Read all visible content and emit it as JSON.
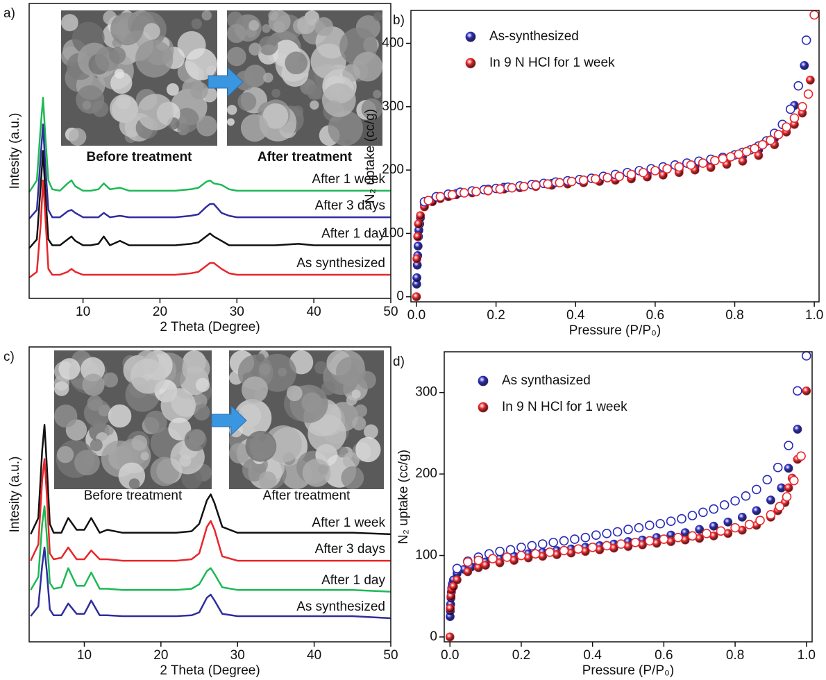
{
  "chart_data": [
    {
      "type": "line",
      "panel_label": "a)",
      "xlabel": "2 Theta (Degree)",
      "ylabel": "Intesity (a.u.)",
      "xlim": [
        3,
        50
      ],
      "xticks": [
        10,
        20,
        30,
        40,
        50
      ],
      "ylim": [
        0,
        100
      ],
      "insets": [
        {
          "caption": "Before treatment"
        },
        {
          "caption": "After treatment"
        }
      ],
      "inset_caption_bold": true,
      "x": [
        3,
        4,
        4.5,
        4.8,
        5.1,
        5.5,
        6,
        7,
        8,
        8.5,
        9,
        10,
        11,
        12,
        12.7,
        13.5,
        14.8,
        16,
        18,
        20,
        22,
        24,
        25,
        26,
        26.5,
        27,
        28,
        29,
        30,
        32,
        35,
        38,
        40,
        45,
        50
      ],
      "series": [
        {
          "name": "After 1 week",
          "color": "#1db954",
          "values": [
            36,
            40,
            58,
            68,
            55,
            40,
            37,
            36.5,
            39,
            40,
            38,
            36.5,
            36.5,
            37,
            39,
            37,
            37.5,
            36.5,
            36.5,
            36.5,
            36.5,
            37,
            37.5,
            39.5,
            40,
            39,
            38.5,
            37,
            36.5,
            36.5,
            36.5,
            36.5,
            36.5,
            36.5,
            36.5
          ]
        },
        {
          "name": "After 3 days",
          "color": "#2e2e9e",
          "values": [
            27,
            30,
            48,
            59,
            45,
            30,
            27.5,
            27.5,
            29.5,
            30,
            29,
            27.5,
            27.5,
            27.5,
            29,
            27.5,
            28,
            27.5,
            27.5,
            27.5,
            27.5,
            28,
            28.5,
            31,
            32,
            32,
            29,
            28,
            27.5,
            27.5,
            27.5,
            27.5,
            27.5,
            27.5,
            27.5
          ]
        },
        {
          "name": "After 1 day",
          "color": "#111111",
          "values": [
            17,
            20,
            38,
            50,
            36,
            20,
            18,
            18,
            20,
            21,
            19.5,
            18,
            18,
            18.5,
            21,
            18,
            19.5,
            18,
            18,
            18,
            18,
            18.5,
            19,
            21,
            22,
            21,
            19.5,
            18,
            18,
            18,
            18,
            18.5,
            18,
            18,
            18
          ]
        },
        {
          "name": "As synthesized",
          "color": "#e8262b",
          "values": [
            7,
            9,
            25,
            40,
            28,
            10,
            8,
            8,
            9,
            10,
            9,
            8,
            8,
            8,
            8,
            8,
            8,
            8,
            8,
            8,
            8,
            8.5,
            9,
            11,
            12,
            12,
            10,
            8.5,
            8,
            8,
            8,
            8,
            8,
            8,
            8
          ]
        }
      ]
    },
    {
      "type": "scatter",
      "panel_label": "b)",
      "xlabel": "Pressure (P/P₀)",
      "ylabel": "N₂ uptake (cc/g)",
      "xlim": [
        -0.014,
        1.012
      ],
      "xticks": [
        {
          "value": 0,
          "label": "0.0"
        },
        0.2,
        0.4,
        0.6,
        0.8,
        {
          "value": 1,
          "label": "1.0"
        }
      ],
      "ylim": [
        -8,
        452
      ],
      "yticks": [
        0,
        100,
        200,
        300,
        400
      ],
      "legend": "upper left",
      "series": [
        {
          "name": "As-synthesized",
          "color": "#2b2bb8",
          "marker": "filled",
          "x": [
            0.0005,
            0.001,
            0.002,
            0.003,
            0.004,
            0.005,
            0.006,
            0.008,
            0.01,
            0.02,
            0.04,
            0.06,
            0.08,
            0.1,
            0.14,
            0.18,
            0.22,
            0.26,
            0.3,
            0.34,
            0.38,
            0.42,
            0.46,
            0.5,
            0.54,
            0.58,
            0.62,
            0.66,
            0.7,
            0.74,
            0.78,
            0.82,
            0.86,
            0.9,
            0.93,
            0.95,
            0.975
          ],
          "values": [
            20,
            30,
            50,
            65,
            80,
            95,
            105,
            115,
            125,
            145,
            152,
            157,
            160,
            163,
            167,
            170,
            173,
            175,
            177,
            179,
            181,
            183,
            185,
            187,
            189,
            192,
            196,
            200,
            205,
            210,
            216,
            222,
            232,
            250,
            268,
            302,
            365
          ]
        },
        {
          "name": "In 9 N HCl for 1 week",
          "color": "#e8262b",
          "marker": "filled",
          "x": [
            0,
            0.001,
            0.003,
            0.005,
            0.01,
            0.02,
            0.04,
            0.06,
            0.08,
            0.1,
            0.14,
            0.18,
            0.22,
            0.26,
            0.3,
            0.34,
            0.38,
            0.42,
            0.46,
            0.5,
            0.54,
            0.58,
            0.62,
            0.66,
            0.7,
            0.74,
            0.78,
            0.82,
            0.86,
            0.9,
            0.93,
            0.95,
            0.97,
            0.99
          ],
          "values": [
            0,
            60,
            95,
            115,
            128,
            142,
            150,
            155,
            158,
            161,
            164,
            167,
            170,
            172,
            174,
            176,
            178,
            180,
            182,
            184,
            186,
            189,
            192,
            196,
            200,
            204,
            209,
            214,
            223,
            240,
            260,
            272,
            290,
            342
          ]
        },
        {
          "color": "#2b2bb8",
          "marker": "open",
          "x": [
            0.98,
            0.96,
            0.94,
            0.92,
            0.9,
            0.88,
            0.86,
            0.84,
            0.82,
            0.8,
            0.77,
            0.74,
            0.71,
            0.68,
            0.65,
            0.62,
            0.59,
            0.56,
            0.53,
            0.5,
            0.47,
            0.44,
            0.41,
            0.38,
            0.35,
            0.32,
            0.29,
            0.26,
            0.23,
            0.2,
            0.17,
            0.14,
            0.11,
            0.08,
            0.05,
            0.02
          ],
          "values": [
            405,
            333,
            296,
            272,
            258,
            246,
            238,
            232,
            228,
            224,
            220,
            217,
            214,
            211,
            208,
            205,
            202,
            199,
            196,
            193,
            190,
            187,
            185,
            183,
            181,
            179,
            177,
            175,
            173,
            171,
            169,
            167,
            165,
            162,
            158,
            150
          ]
        },
        {
          "color": "#e8262b",
          "marker": "open",
          "x": [
            1.0,
            0.985,
            0.97,
            0.95,
            0.93,
            0.91,
            0.89,
            0.87,
            0.85,
            0.83,
            0.81,
            0.79,
            0.77,
            0.75,
            0.72,
            0.69,
            0.66,
            0.63,
            0.6,
            0.57,
            0.54,
            0.51,
            0.48,
            0.45,
            0.42,
            0.39,
            0.36,
            0.33,
            0.3,
            0.27,
            0.24,
            0.21,
            0.18,
            0.15,
            0.12,
            0.09,
            0.06,
            0.03
          ],
          "values": [
            445,
            320,
            300,
            282,
            268,
            256,
            247,
            240,
            234,
            229,
            225,
            221,
            218,
            215,
            211,
            208,
            205,
            202,
            199,
            196,
            193,
            190,
            188,
            186,
            184,
            182,
            180,
            178,
            176,
            174,
            172,
            170,
            168,
            166,
            164,
            161,
            158,
            152
          ]
        }
      ]
    },
    {
      "type": "line",
      "panel_label": "c)",
      "xlabel": "2 Theta (Degree)",
      "ylabel": "Intesity (a.u.)",
      "xlim": [
        2.8,
        50
      ],
      "xticks": [
        10,
        20,
        30,
        40,
        50
      ],
      "ylim": [
        0,
        100
      ],
      "insets": [
        {
          "caption": "Before treatment"
        },
        {
          "caption": "After treatment"
        }
      ],
      "inset_caption_bold": false,
      "x": [
        3,
        4,
        4.5,
        4.8,
        5.1,
        5.5,
        6,
        7,
        7.9,
        9,
        10,
        10.9,
        12,
        13,
        15,
        18,
        20,
        22,
        24,
        25,
        26,
        26.5,
        27,
        28,
        30,
        35,
        40,
        45,
        50
      ],
      "series": [
        {
          "name": "After 1 week",
          "color": "#111111",
          "values": [
            36.5,
            42,
            65,
            73.6,
            60,
            40,
            37,
            37,
            42,
            38,
            38,
            42,
            37,
            38,
            37,
            37,
            37,
            37,
            37.5,
            40,
            48,
            50,
            47,
            39,
            37,
            37,
            37,
            37,
            36.5
          ]
        },
        {
          "name": "After 3 days",
          "color": "#e8262b",
          "values": [
            27.5,
            33,
            55,
            62,
            50,
            30,
            28,
            28.5,
            32,
            28,
            28,
            31,
            28,
            28,
            27.5,
            27.5,
            27.5,
            27.5,
            28,
            30,
            39,
            41,
            38,
            29,
            27.5,
            27.5,
            27.5,
            27.5,
            27.5
          ]
        },
        {
          "name": "After 1 day",
          "color": "#1db954",
          "values": [
            17.6,
            22,
            40,
            46,
            36,
            20,
            18,
            18.5,
            25,
            19,
            19,
            23.5,
            18,
            18,
            17.6,
            17.6,
            17.6,
            17.6,
            18,
            19.5,
            24,
            25,
            23,
            18.5,
            17.6,
            17.6,
            17.6,
            17.6,
            17
          ]
        },
        {
          "name": "As synthesized",
          "color": "#2e2e9e",
          "values": [
            8.7,
            12,
            26,
            32,
            24,
            11,
            9,
            9,
            13,
            9.5,
            9.5,
            14,
            9,
            9,
            8.7,
            8.7,
            8.7,
            8.7,
            9,
            10,
            15,
            16,
            14,
            9.5,
            8.7,
            8.7,
            8.7,
            8.7,
            8
          ]
        }
      ]
    },
    {
      "type": "scatter",
      "panel_label": "d)",
      "xlabel": "Pressure (P/P₀)",
      "ylabel": "N₂ uptake (cc/g)",
      "xlim": [
        -0.016,
        1.016
      ],
      "xticks": [
        {
          "value": 0,
          "label": "0.0"
        },
        0.2,
        0.4,
        0.6,
        0.8,
        {
          "value": 1,
          "label": "1.0"
        }
      ],
      "ylim": [
        -6,
        350
      ],
      "yticks": [
        0,
        100,
        200,
        300
      ],
      "legend": "upper left",
      "series": [
        {
          "name": "As synthasized",
          "color": "#2b2bb8",
          "marker": "filled",
          "x": [
            0.0005,
            0.001,
            0.002,
            0.003,
            0.004,
            0.005,
            0.007,
            0.01,
            0.02,
            0.04,
            0.06,
            0.08,
            0.1,
            0.14,
            0.18,
            0.22,
            0.26,
            0.3,
            0.34,
            0.38,
            0.42,
            0.46,
            0.5,
            0.54,
            0.58,
            0.62,
            0.66,
            0.7,
            0.74,
            0.78,
            0.82,
            0.86,
            0.9,
            0.93,
            0.95,
            0.975
          ],
          "values": [
            25,
            32,
            40,
            48,
            55,
            60,
            65,
            70,
            78,
            83,
            86,
            89,
            92,
            96,
            99,
            102,
            104,
            106,
            108,
            110,
            112,
            114,
            117,
            119,
            122,
            125,
            128,
            132,
            136,
            141,
            147,
            155,
            168,
            183,
            207,
            255
          ]
        },
        {
          "name": "In 9 N HCl for 1 week",
          "color": "#e8262b",
          "marker": "filled",
          "x": [
            0,
            0.001,
            0.003,
            0.005,
            0.01,
            0.02,
            0.05,
            0.08,
            0.1,
            0.14,
            0.18,
            0.22,
            0.26,
            0.3,
            0.34,
            0.38,
            0.42,
            0.46,
            0.5,
            0.54,
            0.58,
            0.62,
            0.66,
            0.7,
            0.74,
            0.78,
            0.82,
            0.86,
            0.9,
            0.92,
            0.94,
            0.95,
            0.96,
            0.975,
            1.0
          ],
          "values": [
            0,
            35,
            50,
            58,
            62,
            70,
            80,
            85,
            88,
            91,
            94,
            97,
            99,
            101,
            103,
            105,
            107,
            109,
            111,
            113,
            115,
            117,
            119,
            121,
            124,
            127,
            131,
            137,
            147,
            155,
            165,
            183,
            195,
            218,
            302
          ]
        },
        {
          "color": "#2b2bb8",
          "marker": "open",
          "x": [
            1.0,
            0.975,
            0.95,
            0.92,
            0.89,
            0.86,
            0.83,
            0.8,
            0.77,
            0.74,
            0.71,
            0.68,
            0.65,
            0.62,
            0.59,
            0.56,
            0.53,
            0.5,
            0.47,
            0.44,
            0.41,
            0.38,
            0.35,
            0.32,
            0.29,
            0.26,
            0.23,
            0.2,
            0.17,
            0.14,
            0.11,
            0.08,
            0.05,
            0.02
          ],
          "values": [
            345,
            302,
            235,
            208,
            193,
            181,
            173,
            167,
            162,
            157,
            153,
            149,
            145,
            142,
            139,
            137,
            134,
            132,
            129,
            127,
            125,
            122,
            120,
            118,
            116,
            114,
            112,
            110,
            107,
            105,
            102,
            98,
            93,
            84
          ]
        },
        {
          "color": "#e8262b",
          "marker": "open",
          "x": [
            0.985,
            0.965,
            0.945,
            0.925,
            0.9,
            0.87,
            0.84,
            0.8,
            0.76,
            0.72,
            0.68,
            0.64,
            0.6,
            0.56,
            0.52,
            0.48,
            0.44,
            0.4,
            0.36,
            0.32,
            0.28,
            0.24,
            0.2,
            0.16,
            0.12,
            0.08,
            0.05
          ],
          "values": [
            222,
            192,
            172,
            160,
            150,
            143,
            138,
            134,
            130,
            127,
            124,
            122,
            120,
            118,
            116,
            114,
            112,
            110,
            108,
            106,
            104,
            102,
            100,
            98,
            96,
            94,
            92
          ]
        }
      ]
    }
  ]
}
